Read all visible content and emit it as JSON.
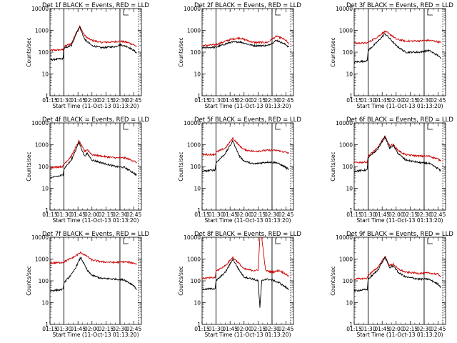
{
  "chart_data": [
    {
      "type": "line",
      "title": "Det 1f BLACK = Events, RED = LLD",
      "xlabel": "Start Time (11-Oct-13 01:13:20)",
      "ylabel": "Counts/sec",
      "yscale": "log",
      "ylim": [
        1,
        10000
      ],
      "xlim_minutes": [
        75,
        173
      ],
      "x_tick_labels": [
        "01:15",
        "01:30",
        "01:45",
        "02:00",
        "02:15",
        "02:30",
        "02:45"
      ],
      "y_tick_labels": [
        "1",
        "10",
        "100",
        "1000",
        "10000"
      ],
      "vertical_lines_solid": [
        "01:30",
        "02:30"
      ],
      "vertical_lines_dotted": [
        "02:50"
      ],
      "series": [
        {
          "name": "Events",
          "color": "#000000",
          "times": [
            "01:15",
            "01:29",
            "01:30",
            "01:38",
            "01:43",
            "01:47",
            "01:52",
            "01:55",
            "02:00",
            "02:10",
            "02:25",
            "02:30",
            "02:38",
            "02:45",
            "02:48"
          ],
          "values": [
            45,
            50,
            150,
            200,
            700,
            1400,
            400,
            300,
            200,
            160,
            180,
            220,
            180,
            120,
            90
          ]
        },
        {
          "name": "LLD",
          "color": "#cc0000",
          "times": [
            "01:15",
            "01:29",
            "01:30",
            "01:38",
            "01:43",
            "01:47",
            "01:52",
            "01:55",
            "02:00",
            "02:10",
            "02:25",
            "02:30",
            "02:38",
            "02:45",
            "02:48"
          ],
          "values": [
            120,
            130,
            180,
            250,
            800,
            1500,
            600,
            450,
            350,
            280,
            300,
            320,
            280,
            220,
            180
          ]
        }
      ]
    },
    {
      "type": "line",
      "title": "Det 2f BLACK = Events, RED = LLD",
      "xlabel": "Start Time (11-Oct-13 01:13:20)",
      "ylabel": "Counts/sec",
      "yscale": "log",
      "ylim": [
        1,
        10000
      ],
      "xlim_minutes": [
        75,
        173
      ],
      "x_tick_labels": [
        "01:15",
        "01:30",
        "01:45",
        "02:00",
        "02:15",
        "02:30",
        "02:45"
      ],
      "y_tick_labels": [
        "1",
        "10",
        "100",
        "1000",
        "10000"
      ],
      "vertical_lines_solid": [
        "01:30",
        "02:30"
      ],
      "vertical_lines_dotted": [
        "02:50"
      ],
      "series": [
        {
          "name": "Events",
          "color": "#000000",
          "times": [
            "01:15",
            "01:30",
            "01:45",
            "01:55",
            "02:10",
            "02:25",
            "02:35",
            "02:45",
            "02:48"
          ],
          "values": [
            160,
            170,
            280,
            300,
            200,
            200,
            350,
            220,
            170
          ]
        },
        {
          "name": "LLD",
          "color": "#cc0000",
          "times": [
            "01:15",
            "01:30",
            "01:45",
            "01:55",
            "02:10",
            "02:25",
            "02:35",
            "02:45",
            "02:48"
          ],
          "values": [
            200,
            220,
            380,
            450,
            280,
            280,
            550,
            350,
            230
          ]
        }
      ]
    },
    {
      "type": "line",
      "title": "Det 3f BLACK = Events, RED = LLD",
      "xlabel": "Start Time (11-Oct-13 01:13:20)",
      "ylabel": "Counts/sec",
      "yscale": "log",
      "ylim": [
        1,
        10000
      ],
      "xlim_minutes": [
        75,
        173
      ],
      "x_tick_labels": [
        "01:15",
        "01:30",
        "01:45",
        "02:00",
        "02:15",
        "02:30",
        "02:45"
      ],
      "y_tick_labels": [
        "1",
        "10",
        "100",
        "1000",
        "10000"
      ],
      "vertical_lines_solid": [
        "01:30",
        "02:30"
      ],
      "vertical_lines_dotted": [
        "02:50"
      ],
      "series": [
        {
          "name": "Events",
          "color": "#000000",
          "times": [
            "01:15",
            "01:29",
            "01:30",
            "01:40",
            "01:48",
            "01:55",
            "02:00",
            "02:10",
            "02:25",
            "02:35",
            "02:45",
            "02:48"
          ],
          "values": [
            35,
            40,
            120,
            300,
            700,
            350,
            200,
            100,
            100,
            120,
            70,
            50
          ]
        },
        {
          "name": "LLD",
          "color": "#cc0000",
          "times": [
            "01:15",
            "01:29",
            "01:30",
            "01:40",
            "01:48",
            "01:55",
            "02:00",
            "02:10",
            "02:25",
            "02:35",
            "02:45",
            "02:48"
          ],
          "values": [
            260,
            260,
            280,
            500,
            900,
            600,
            400,
            320,
            330,
            350,
            300,
            270
          ]
        }
      ]
    },
    {
      "type": "line",
      "title": "Det 4f BLACK = Events, RED = LLD",
      "xlabel": "Start Time (11-Oct-13 01:13:20)",
      "ylabel": "Counts/sec",
      "yscale": "log",
      "ylim": [
        1,
        10000
      ],
      "xlim_minutes": [
        75,
        173
      ],
      "x_tick_labels": [
        "01:15",
        "01:30",
        "01:45",
        "02:00",
        "02:15",
        "02:30",
        "02:45"
      ],
      "y_tick_labels": [
        "1",
        "10",
        "100",
        "1000",
        "10000"
      ],
      "vertical_lines_solid": [
        "01:30",
        "02:30"
      ],
      "vertical_lines_dotted": [
        "02:50"
      ],
      "series": [
        {
          "name": "Events",
          "color": "#000000",
          "times": [
            "01:15",
            "01:29",
            "01:30",
            "01:38",
            "01:46",
            "01:52",
            "01:55",
            "02:00",
            "02:10",
            "02:25",
            "02:35",
            "02:45",
            "02:48"
          ],
          "values": [
            30,
            40,
            80,
            200,
            1300,
            300,
            400,
            200,
            150,
            100,
            90,
            50,
            40
          ]
        },
        {
          "name": "LLD",
          "color": "#cc0000",
          "times": [
            "01:15",
            "01:29",
            "01:30",
            "01:38",
            "01:46",
            "01:52",
            "01:55",
            "02:00",
            "02:10",
            "02:25",
            "02:35",
            "02:45",
            "02:48"
          ],
          "values": [
            90,
            100,
            130,
            300,
            1500,
            500,
            600,
            350,
            300,
            250,
            250,
            180,
            150
          ]
        }
      ]
    },
    {
      "type": "line",
      "title": "Det 5f BLACK = Events, RED = LLD",
      "xlabel": "Start Time (11-Oct-13 01:13:20)",
      "ylabel": "Counts/sec",
      "yscale": "log",
      "ylim": [
        1,
        10000
      ],
      "xlim_minutes": [
        75,
        173
      ],
      "x_tick_labels": [
        "01:15",
        "01:30",
        "01:45",
        "02:00",
        "02:15",
        "02:30",
        "02:45"
      ],
      "y_tick_labels": [
        "1",
        "10",
        "100",
        "1000",
        "10000"
      ],
      "vertical_lines_solid": [
        "01:30",
        "02:30"
      ],
      "vertical_lines_dotted": [
        "02:50"
      ],
      "series": [
        {
          "name": "Events",
          "color": "#000000",
          "times": [
            "01:15",
            "01:29",
            "01:30",
            "01:40",
            "01:48",
            "01:55",
            "02:00",
            "02:10",
            "02:25",
            "02:35",
            "02:45",
            "02:48"
          ],
          "values": [
            60,
            70,
            150,
            400,
            1500,
            300,
            180,
            130,
            160,
            150,
            90,
            70
          ]
        },
        {
          "name": "LLD",
          "color": "#cc0000",
          "times": [
            "01:15",
            "01:29",
            "01:30",
            "01:40",
            "01:48",
            "01:55",
            "02:00",
            "02:10",
            "02:25",
            "02:35",
            "02:45",
            "02:48"
          ],
          "values": [
            350,
            360,
            450,
            700,
            2000,
            900,
            600,
            500,
            550,
            550,
            450,
            400
          ]
        }
      ]
    },
    {
      "type": "line",
      "title": "Det 6f BLACK = Events, RED = LLD",
      "xlabel": "Start Time (11-Oct-13 01:13:20)",
      "ylabel": "Counts/sec",
      "yscale": "log",
      "ylim": [
        1,
        10000
      ],
      "xlim_minutes": [
        75,
        173
      ],
      "x_tick_labels": [
        "01:15",
        "01:30",
        "01:45",
        "02:00",
        "02:15",
        "02:30",
        "02:45"
      ],
      "y_tick_labels": [
        "1",
        "10",
        "100",
        "1000",
        "10000"
      ],
      "vertical_lines_solid": [
        "01:30",
        "02:30"
      ],
      "vertical_lines_dotted": [
        "02:50"
      ],
      "series": [
        {
          "name": "Events",
          "color": "#000000",
          "times": [
            "01:15",
            "01:29",
            "01:30",
            "01:40",
            "01:48",
            "01:53",
            "01:57",
            "02:02",
            "02:10",
            "02:25",
            "02:35",
            "02:45",
            "02:48"
          ],
          "values": [
            60,
            70,
            250,
            600,
            2300,
            700,
            900,
            400,
            200,
            150,
            140,
            80,
            60
          ]
        },
        {
          "name": "LLD",
          "color": "#cc0000",
          "times": [
            "01:15",
            "01:29",
            "01:30",
            "01:40",
            "01:48",
            "01:53",
            "01:57",
            "02:02",
            "02:10",
            "02:25",
            "02:35",
            "02:45",
            "02:48"
          ],
          "values": [
            150,
            160,
            300,
            700,
            2500,
            900,
            1000,
            550,
            350,
            300,
            300,
            220,
            180
          ]
        }
      ]
    },
    {
      "type": "line",
      "title": "Det 7f BLACK = Events, RED = LLD",
      "xlabel": "Start Time (11-Oct-13 01:13:20)",
      "ylabel": "Counts/sec",
      "yscale": "log",
      "ylim": [
        1,
        10000
      ],
      "xlim_minutes": [
        75,
        173
      ],
      "x_tick_labels": [
        "01:15",
        "01:30",
        "01:45",
        "02:00",
        "02:15",
        "02:30",
        "02:45"
      ],
      "y_tick_labels": [
        "1",
        "10",
        "100",
        "1000",
        "10000"
      ],
      "vertical_lines_solid": [
        "01:30",
        "02:30"
      ],
      "vertical_lines_dotted": [
        "02:50"
      ],
      "series": [
        {
          "name": "Events",
          "color": "#000000",
          "times": [
            "01:15",
            "01:29",
            "01:30",
            "01:40",
            "01:48",
            "01:55",
            "02:00",
            "02:10",
            "02:25",
            "02:35",
            "02:45",
            "02:48"
          ],
          "values": [
            35,
            40,
            80,
            250,
            1200,
            300,
            180,
            130,
            120,
            110,
            60,
            40
          ]
        },
        {
          "name": "LLD",
          "color": "#cc0000",
          "times": [
            "01:15",
            "01:29",
            "01:30",
            "01:40",
            "01:48",
            "01:55",
            "02:00",
            "02:10",
            "02:25",
            "02:35",
            "02:45",
            "02:48"
          ],
          "values": [
            650,
            700,
            750,
            1200,
            2000,
            1300,
            900,
            750,
            700,
            750,
            650,
            600
          ]
        }
      ]
    },
    {
      "type": "line",
      "title": "Det 8f BLACK = Events, RED = LLD",
      "xlabel": "Start Time (11-Oct-13 01:13:20)",
      "ylabel": "Counts/sec",
      "yscale": "log",
      "ylim": [
        1,
        10000
      ],
      "xlim_minutes": [
        75,
        173
      ],
      "x_tick_labels": [
        "01:15",
        "01:30",
        "01:45",
        "02:00",
        "02:15",
        "02:30",
        "02:45"
      ],
      "y_tick_labels": [
        "1",
        "10",
        "100",
        "1000",
        "10000"
      ],
      "vertical_lines_solid": [
        "01:30",
        "02:30"
      ],
      "vertical_lines_dotted": [
        "02:50"
      ],
      "series": [
        {
          "name": "Events",
          "color": "#000000",
          "times": [
            "01:15",
            "01:29",
            "01:30",
            "01:40",
            "01:48",
            "01:55",
            "02:00",
            "02:10",
            "02:15",
            "02:17",
            "02:19",
            "02:23",
            "02:30",
            "02:38",
            "02:45",
            "02:48"
          ],
          "values": [
            40,
            45,
            100,
            250,
            1000,
            300,
            150,
            120,
            100,
            6,
            100,
            120,
            110,
            80,
            50,
            40
          ]
        },
        {
          "name": "LLD",
          "color": "#cc0000",
          "times": [
            "01:15",
            "01:29",
            "01:30",
            "01:40",
            "01:48",
            "01:55",
            "02:00",
            "02:10",
            "02:15",
            "02:17",
            "02:19",
            "02:23",
            "02:30",
            "02:38",
            "02:45",
            "02:48"
          ],
          "values": [
            130,
            140,
            280,
            500,
            1200,
            600,
            350,
            300,
            300,
            10000,
            10000,
            300,
            250,
            300,
            200,
            160
          ]
        }
      ]
    },
    {
      "type": "line",
      "title": "Det 9f BLACK = Events, RED = LLD",
      "xlabel": "Start Time (11-Oct-13 01:13:20)",
      "ylabel": "Counts/sec",
      "yscale": "log",
      "ylim": [
        1,
        10000
      ],
      "xlim_minutes": [
        75,
        173
      ],
      "x_tick_labels": [
        "01:15",
        "01:30",
        "01:45",
        "02:00",
        "02:15",
        "02:30",
        "02:45"
      ],
      "y_tick_labels": [
        "1",
        "10",
        "100",
        "1000",
        "10000"
      ],
      "vertical_lines_solid": [
        "01:30",
        "02:30"
      ],
      "vertical_lines_dotted": [
        "02:50"
      ],
      "series": [
        {
          "name": "Events",
          "color": "#000000",
          "times": [
            "01:15",
            "01:29",
            "01:30",
            "01:40",
            "01:48",
            "01:53",
            "01:57",
            "02:02",
            "02:10",
            "02:25",
            "02:35",
            "02:45",
            "02:48"
          ],
          "values": [
            35,
            40,
            120,
            300,
            1200,
            400,
            500,
            250,
            150,
            120,
            120,
            70,
            50
          ]
        },
        {
          "name": "LLD",
          "color": "#cc0000",
          "times": [
            "01:15",
            "01:29",
            "01:30",
            "01:40",
            "01:48",
            "01:53",
            "01:57",
            "02:02",
            "02:10",
            "02:25",
            "02:35",
            "02:45",
            "02:48"
          ],
          "values": [
            120,
            130,
            180,
            400,
            1300,
            500,
            600,
            350,
            250,
            220,
            230,
            200,
            160
          ]
        }
      ]
    }
  ]
}
